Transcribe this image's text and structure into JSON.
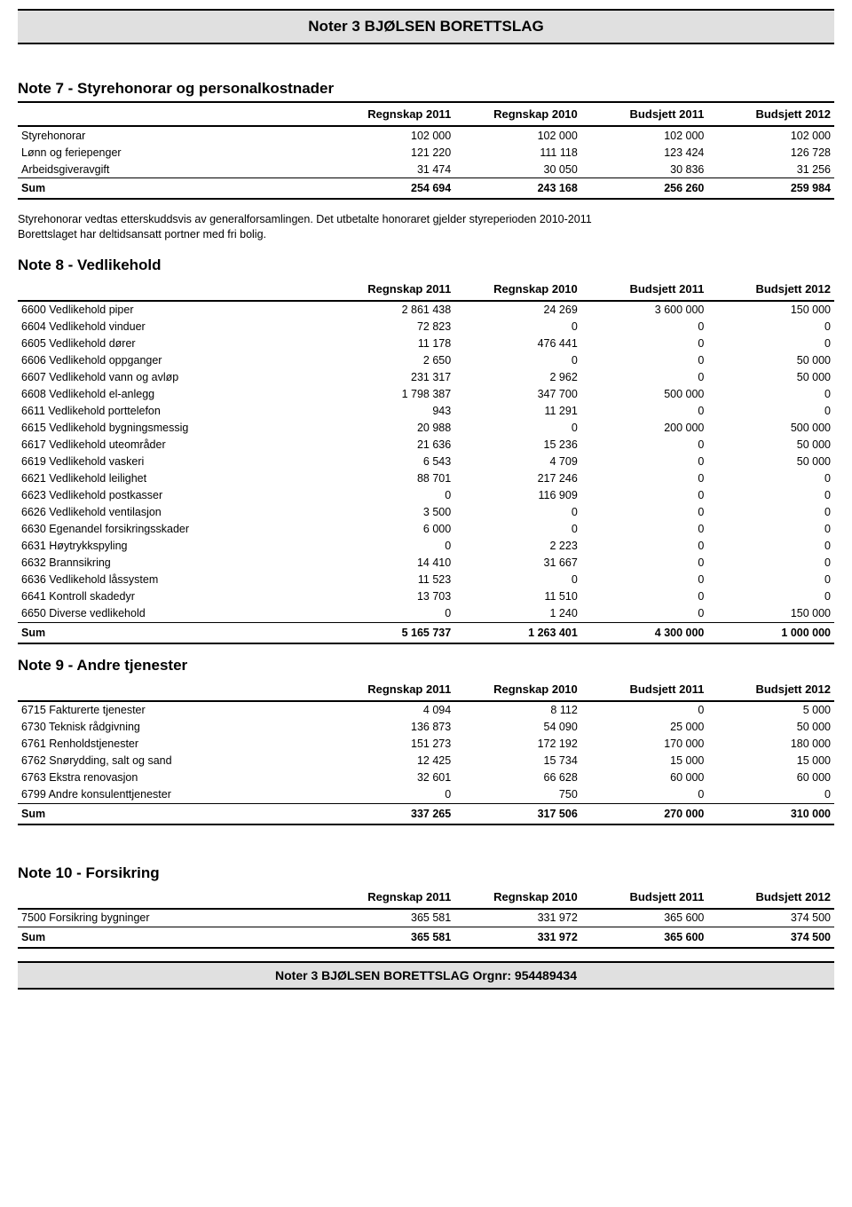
{
  "header_title": "Noter 3 BJØLSEN BORETTSLAG",
  "footer_title": "Noter 3 BJØLSEN BORETTSLAG Orgnr: 954489434",
  "columns": [
    "Regnskap 2011",
    "Regnskap 2010",
    "Budsjett 2011",
    "Budsjett 2012"
  ],
  "sum_label": "Sum",
  "note7": {
    "title": "Note 7 - Styrehonorar og personalkostnader",
    "rows": [
      {
        "label": "Styrehonorar",
        "v": [
          "102 000",
          "102 000",
          "102 000",
          "102 000"
        ]
      },
      {
        "label": "Lønn og feriepenger",
        "v": [
          "121 220",
          "111 118",
          "123 424",
          "126 728"
        ]
      },
      {
        "label": "Arbeidsgiveravgift",
        "v": [
          "31 474",
          "30 050",
          "30 836",
          "31 256"
        ]
      }
    ],
    "sum": [
      "254 694",
      "243 168",
      "256 260",
      "259 984"
    ],
    "intertext_line1": "Styrehonorar vedtas etterskuddsvis av generalforsamlingen. Det utbetalte honoraret gjelder styreperioden 2010-2011",
    "intertext_line2": "Borettslaget har deltidsansatt portner med fri bolig."
  },
  "note8": {
    "title": "Note 8 - Vedlikehold",
    "rows": [
      {
        "label": "6600 Vedlikehold piper",
        "v": [
          "2 861 438",
          "24 269",
          "3 600 000",
          "150 000"
        ]
      },
      {
        "label": "6604 Vedlikehold vinduer",
        "v": [
          "72 823",
          "0",
          "0",
          "0"
        ]
      },
      {
        "label": "6605 Vedlikehold dører",
        "v": [
          "11 178",
          "476 441",
          "0",
          "0"
        ]
      },
      {
        "label": "6606 Vedlikehold oppganger",
        "v": [
          "2 650",
          "0",
          "0",
          "50 000"
        ]
      },
      {
        "label": "6607 Vedlikehold vann og avløp",
        "v": [
          "231 317",
          "2 962",
          "0",
          "50 000"
        ]
      },
      {
        "label": "6608 Vedlikehold el-anlegg",
        "v": [
          "1 798 387",
          "347 700",
          "500 000",
          "0"
        ]
      },
      {
        "label": "6611 Vedlikehold porttelefon",
        "v": [
          "943",
          "11 291",
          "0",
          "0"
        ]
      },
      {
        "label": "6615 Vedlikehold bygningsmessig",
        "v": [
          "20 988",
          "0",
          "200 000",
          "500 000"
        ]
      },
      {
        "label": "6617 Vedlikehold uteområder",
        "v": [
          "21 636",
          "15 236",
          "0",
          "50 000"
        ]
      },
      {
        "label": "6619 Vedlikehold vaskeri",
        "v": [
          "6 543",
          "4 709",
          "0",
          "50 000"
        ]
      },
      {
        "label": "6621 Vedlikehold leilighet",
        "v": [
          "88 701",
          "217 246",
          "0",
          "0"
        ]
      },
      {
        "label": "6623 Vedlikehold postkasser",
        "v": [
          "0",
          "116 909",
          "0",
          "0"
        ]
      },
      {
        "label": "6626 Vedlikehold ventilasjon",
        "v": [
          "3 500",
          "0",
          "0",
          "0"
        ]
      },
      {
        "label": "6630 Egenandel forsikringsskader",
        "v": [
          "6 000",
          "0",
          "0",
          "0"
        ]
      },
      {
        "label": "6631 Høytrykkspyling",
        "v": [
          "0",
          "2 223",
          "0",
          "0"
        ]
      },
      {
        "label": "6632 Brannsikring",
        "v": [
          "14 410",
          "31 667",
          "0",
          "0"
        ]
      },
      {
        "label": "6636 Vedlikehold låssystem",
        "v": [
          "11 523",
          "0",
          "0",
          "0"
        ]
      },
      {
        "label": "6641 Kontroll skadedyr",
        "v": [
          "13 703",
          "11 510",
          "0",
          "0"
        ]
      },
      {
        "label": "6650 Diverse vedlikehold",
        "v": [
          "0",
          "1 240",
          "0",
          "150 000"
        ]
      }
    ],
    "sum": [
      "5 165 737",
      "1 263 401",
      "4 300 000",
      "1 000 000"
    ]
  },
  "note9": {
    "title": "Note 9 - Andre tjenester",
    "rows": [
      {
        "label": "6715 Fakturerte tjenester",
        "v": [
          "4 094",
          "8 112",
          "0",
          "5 000"
        ]
      },
      {
        "label": "6730 Teknisk rådgivning",
        "v": [
          "136 873",
          "54 090",
          "25 000",
          "50 000"
        ]
      },
      {
        "label": "6761 Renholdstjenester",
        "v": [
          "151 273",
          "172 192",
          "170 000",
          "180 000"
        ]
      },
      {
        "label": "6762 Snørydding, salt og sand",
        "v": [
          "12 425",
          "15 734",
          "15 000",
          "15 000"
        ]
      },
      {
        "label": "6763 Ekstra renovasjon",
        "v": [
          "32 601",
          "66 628",
          "60 000",
          "60 000"
        ]
      },
      {
        "label": "6799 Andre konsulenttjenester",
        "v": [
          "0",
          "750",
          "0",
          "0"
        ]
      }
    ],
    "sum": [
      "337 265",
      "317 506",
      "270 000",
      "310 000"
    ]
  },
  "note10": {
    "title": "Note 10 - Forsikring",
    "rows": [
      {
        "label": "7500 Forsikring bygninger",
        "v": [
          "365 581",
          "331 972",
          "365 600",
          "374 500"
        ]
      }
    ],
    "sum": [
      "365 581",
      "331 972",
      "365 600",
      "374 500"
    ]
  }
}
